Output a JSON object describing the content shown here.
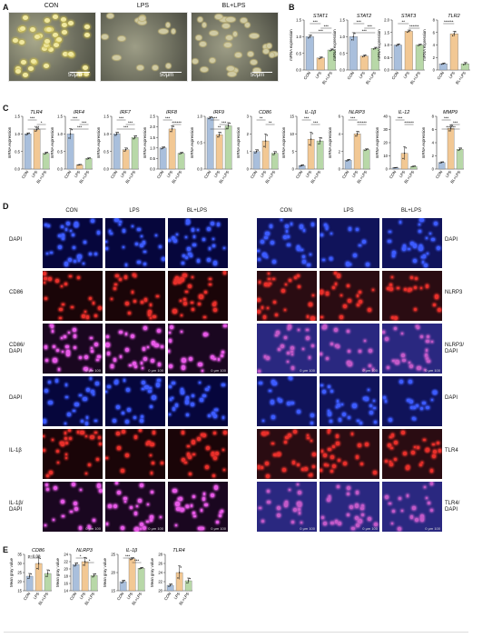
{
  "panels": {
    "A": "A",
    "B": "B",
    "C": "C",
    "D": "D",
    "E": "E"
  },
  "panelA": {
    "images": [
      {
        "label": "CON",
        "scale": "50μm"
      },
      {
        "label": "LPS",
        "scale": "50μm"
      },
      {
        "label": "BL+LPS",
        "scale": "50μm"
      }
    ]
  },
  "groups": [
    "CON",
    "LPS",
    "BL+LPS"
  ],
  "colors": {
    "con": "#a9bfdc",
    "lps": "#f2c894",
    "bl": "#b8d8a8",
    "axis": "#333333"
  },
  "ylabel_expr": "mRNA expression",
  "ylabel_gray": "Mean gray value",
  "chart_data": [
    {
      "type": "bar",
      "panel": "B",
      "title": "STAT1",
      "ylabel": "mRNA expression",
      "ylim": [
        0,
        1.5
      ],
      "yticks": [
        "0.0",
        "0.5",
        "1.0",
        "1.5"
      ],
      "categories": [
        "CON",
        "LPS",
        "BL+LPS"
      ],
      "values": [
        1.0,
        0.36,
        0.6
      ],
      "errors": [
        0.05,
        0.03,
        0.03
      ],
      "sig": [
        "***",
        "***",
        "***"
      ]
    },
    {
      "type": "bar",
      "panel": "B",
      "title": "STAT2",
      "ylabel": "mRNA expression",
      "ylim": [
        0,
        1.5
      ],
      "yticks": [
        "0.0",
        "0.5",
        "1.0",
        "1.5"
      ],
      "categories": [
        "CON",
        "LPS",
        "BL+LPS"
      ],
      "values": [
        1.0,
        0.42,
        0.65
      ],
      "errors": [
        0.12,
        0.03,
        0.03
      ],
      "sig": [
        "***",
        "***",
        "***"
      ]
    },
    {
      "type": "bar",
      "panel": "B",
      "title": "STAT3",
      "ylabel": "mRNA expression",
      "ylim": [
        0,
        2.0
      ],
      "yticks": [
        "0.0",
        "0.5",
        "1.0",
        "1.5",
        "2.0"
      ],
      "categories": [
        "CON",
        "LPS",
        "BL+LPS"
      ],
      "values": [
        1.0,
        1.55,
        1.0
      ],
      "errors": [
        0.04,
        0.05,
        0.03
      ],
      "sig": [
        "**",
        "******"
      ]
    },
    {
      "type": "bar",
      "panel": "B",
      "title": "TLR2",
      "ylabel": "mRNA expression",
      "ylim": [
        0,
        8
      ],
      "yticks": [
        "0",
        "2",
        "4",
        "6",
        "8"
      ],
      "categories": [
        "CON",
        "LPS",
        "BL+LPS"
      ],
      "values": [
        1.0,
        5.8,
        1.0
      ],
      "errors": [
        0.1,
        0.4,
        0.2
      ],
      "sig": [
        "******"
      ]
    },
    {
      "type": "bar",
      "panel": "C",
      "title": "TLR4",
      "ylabel": "mRNA expression",
      "ylim": [
        0,
        1.5
      ],
      "yticks": [
        "0.0",
        "0.5",
        "1.0",
        "1.5"
      ],
      "categories": [
        "CON",
        "LPS",
        "BL+LPS"
      ],
      "values": [
        1.0,
        1.12,
        0.45
      ],
      "errors": [
        0.03,
        0.05,
        0.03
      ],
      "sig": [
        "***",
        "*",
        "***"
      ]
    },
    {
      "type": "bar",
      "panel": "C",
      "title": "IRF4",
      "ylabel": "mRNA expression",
      "ylim": [
        0,
        1.5
      ],
      "yticks": [
        "0.0",
        "0.5",
        "1.0",
        "1.5"
      ],
      "categories": [
        "CON",
        "LPS",
        "BL+LPS"
      ],
      "values": [
        1.0,
        0.12,
        0.3
      ],
      "errors": [
        0.15,
        0.01,
        0.02
      ],
      "sig": [
        "***",
        "***",
        "***"
      ]
    },
    {
      "type": "bar",
      "panel": "C",
      "title": "IRF7",
      "ylabel": "mRNA expression",
      "ylim": [
        0,
        1.5
      ],
      "yticks": [
        "0.0",
        "0.5",
        "1.0",
        "1.5"
      ],
      "categories": [
        "CON",
        "LPS",
        "BL+LPS"
      ],
      "values": [
        1.0,
        0.55,
        0.9
      ],
      "errors": [
        0.05,
        0.05,
        0.05
      ],
      "sig": [
        "***",
        "***",
        "***"
      ]
    },
    {
      "type": "bar",
      "panel": "C",
      "title": "IRF8",
      "ylabel": "mRNA expression",
      "ylim": [
        0,
        2.5
      ],
      "yticks": [
        "0.0",
        "0.5",
        "1.0",
        "1.5",
        "2.0",
        "2.5"
      ],
      "categories": [
        "CON",
        "LPS",
        "BL+LPS"
      ],
      "values": [
        1.0,
        1.9,
        0.75
      ],
      "errors": [
        0.05,
        0.15,
        0.04
      ],
      "sig": [
        "***",
        "******"
      ]
    },
    {
      "type": "bar",
      "panel": "C",
      "title": "IRF9",
      "ylabel": "mRNA expression",
      "ylim": [
        0,
        1.0
      ],
      "yticks": [
        "0.0",
        "0.5",
        "1.0"
      ],
      "categories": [
        "CON",
        "LPS",
        "BL+LPS"
      ],
      "values": [
        0.97,
        0.65,
        0.82
      ],
      "errors": [
        0.02,
        0.05,
        0.06
      ],
      "sig": [
        "***",
        "***",
        "**"
      ]
    },
    {
      "type": "bar",
      "panel": "C",
      "title": "CD86",
      "ylabel": "mRNA expression",
      "ylim": [
        0,
        3
      ],
      "yticks": [
        "0",
        "1",
        "2",
        "3"
      ],
      "categories": [
        "CON",
        "LPS",
        "BL+LPS"
      ],
      "values": [
        1.0,
        1.6,
        0.9
      ],
      "errors": [
        0.1,
        0.4,
        0.1
      ],
      "sig": [
        "**",
        "**"
      ]
    },
    {
      "type": "bar",
      "panel": "C",
      "title": "IL-1β",
      "ylabel": "mRNA expression",
      "ylim": [
        0,
        15
      ],
      "yticks": [
        "0",
        "5",
        "10",
        "15"
      ],
      "categories": [
        "CON",
        "LPS",
        "BL+LPS"
      ],
      "values": [
        1.0,
        8.5,
        8.0
      ],
      "errors": [
        0.2,
        2.0,
        1.0
      ],
      "sig": [
        "***",
        "***"
      ]
    },
    {
      "type": "bar",
      "panel": "C",
      "title": "NLRP3",
      "ylabel": "mRNA expression",
      "ylim": [
        0,
        6
      ],
      "yticks": [
        "0",
        "2",
        "4",
        "6"
      ],
      "categories": [
        "CON",
        "LPS",
        "BL+LPS"
      ],
      "values": [
        1.0,
        4.0,
        2.2
      ],
      "errors": [
        0.1,
        0.3,
        0.1
      ],
      "sig": [
        "***",
        "******"
      ]
    },
    {
      "type": "bar",
      "panel": "C",
      "title": "IL-12",
      "ylabel": "mRNA expression",
      "ylim": [
        0,
        40
      ],
      "yticks": [
        "0",
        "10",
        "20",
        "30",
        "40"
      ],
      "categories": [
        "CON",
        "LPS",
        "BL+LPS"
      ],
      "values": [
        1.0,
        12.0,
        2.0
      ],
      "errors": [
        0.2,
        5.0,
        0.3
      ],
      "sig": [
        "***",
        "******"
      ]
    },
    {
      "type": "bar",
      "panel": "C",
      "title": "MMP9",
      "ylabel": "mRNA expression",
      "ylim": [
        0,
        8
      ],
      "yticks": [
        "0",
        "2",
        "4",
        "6",
        "8"
      ],
      "categories": [
        "CON",
        "LPS",
        "BL+LPS"
      ],
      "values": [
        1.0,
        6.2,
        3.0
      ],
      "errors": [
        0.1,
        0.5,
        0.2
      ],
      "sig": [
        "***",
        "***",
        "******"
      ]
    },
    {
      "type": "bar",
      "panel": "E",
      "title": "CD86",
      "ylabel": "Mean gray value",
      "ylim": [
        15,
        35
      ],
      "yticks": [
        "15",
        "20",
        "25",
        "30",
        "35"
      ],
      "categories": [
        "CON",
        "LPS",
        "BL+LPS"
      ],
      "values": [
        23,
        30,
        24.5
      ],
      "errors": [
        1.5,
        3.5,
        2.0
      ],
      "sig": [
        "p=0.08"
      ]
    },
    {
      "type": "bar",
      "panel": "E",
      "title": "NLRP3",
      "ylabel": "Mean gray value",
      "ylim": [
        14,
        24
      ],
      "yticks": [
        "14",
        "16",
        "18",
        "20",
        "22",
        "24"
      ],
      "categories": [
        "CON",
        "LPS",
        "BL+LPS"
      ],
      "values": [
        21.2,
        22,
        18.2
      ],
      "errors": [
        0.5,
        1.2,
        0.5
      ],
      "sig": [
        "*",
        "*"
      ]
    },
    {
      "type": "bar",
      "panel": "E",
      "title": "IL-1β",
      "ylabel": "Mean gray value",
      "ylim": [
        15,
        25
      ],
      "yticks": [
        "15",
        "20",
        "25"
      ],
      "categories": [
        "CON",
        "LPS",
        "BL+LPS"
      ],
      "values": [
        17.5,
        23.8,
        21.2
      ],
      "errors": [
        0.4,
        0.3,
        0.2
      ],
      "sig": [
        "***",
        "***"
      ]
    },
    {
      "type": "bar",
      "panel": "E",
      "title": "TLR4",
      "ylabel": "Mean gray value",
      "ylim": [
        20,
        28
      ],
      "yticks": [
        "20",
        "22",
        "24",
        "26",
        "28"
      ],
      "categories": [
        "CON",
        "LPS",
        "BL+LPS"
      ],
      "values": [
        21.2,
        24.0,
        22.2
      ],
      "errors": [
        0.3,
        1.5,
        0.6
      ],
      "sig": []
    }
  ],
  "panelD": {
    "col_headers": [
      "CON",
      "LPS",
      "BL+LPS",
      "CON",
      "LPS",
      "BL+LPS"
    ],
    "left_top_rows": [
      "DAPI",
      "CD86",
      "CD86/\nDAPI"
    ],
    "right_top_rows": [
      "DAPI",
      "NLRP3",
      "NLRP3/\nDAPI"
    ],
    "left_bottom_rows": [
      "DAPI",
      "IL-1β",
      "IL-1β/\nDAPI"
    ],
    "right_bottom_rows": [
      "DAPI",
      "TLR4",
      "TLR4/\nDAPI"
    ],
    "scale_text": "0   μm   100"
  }
}
